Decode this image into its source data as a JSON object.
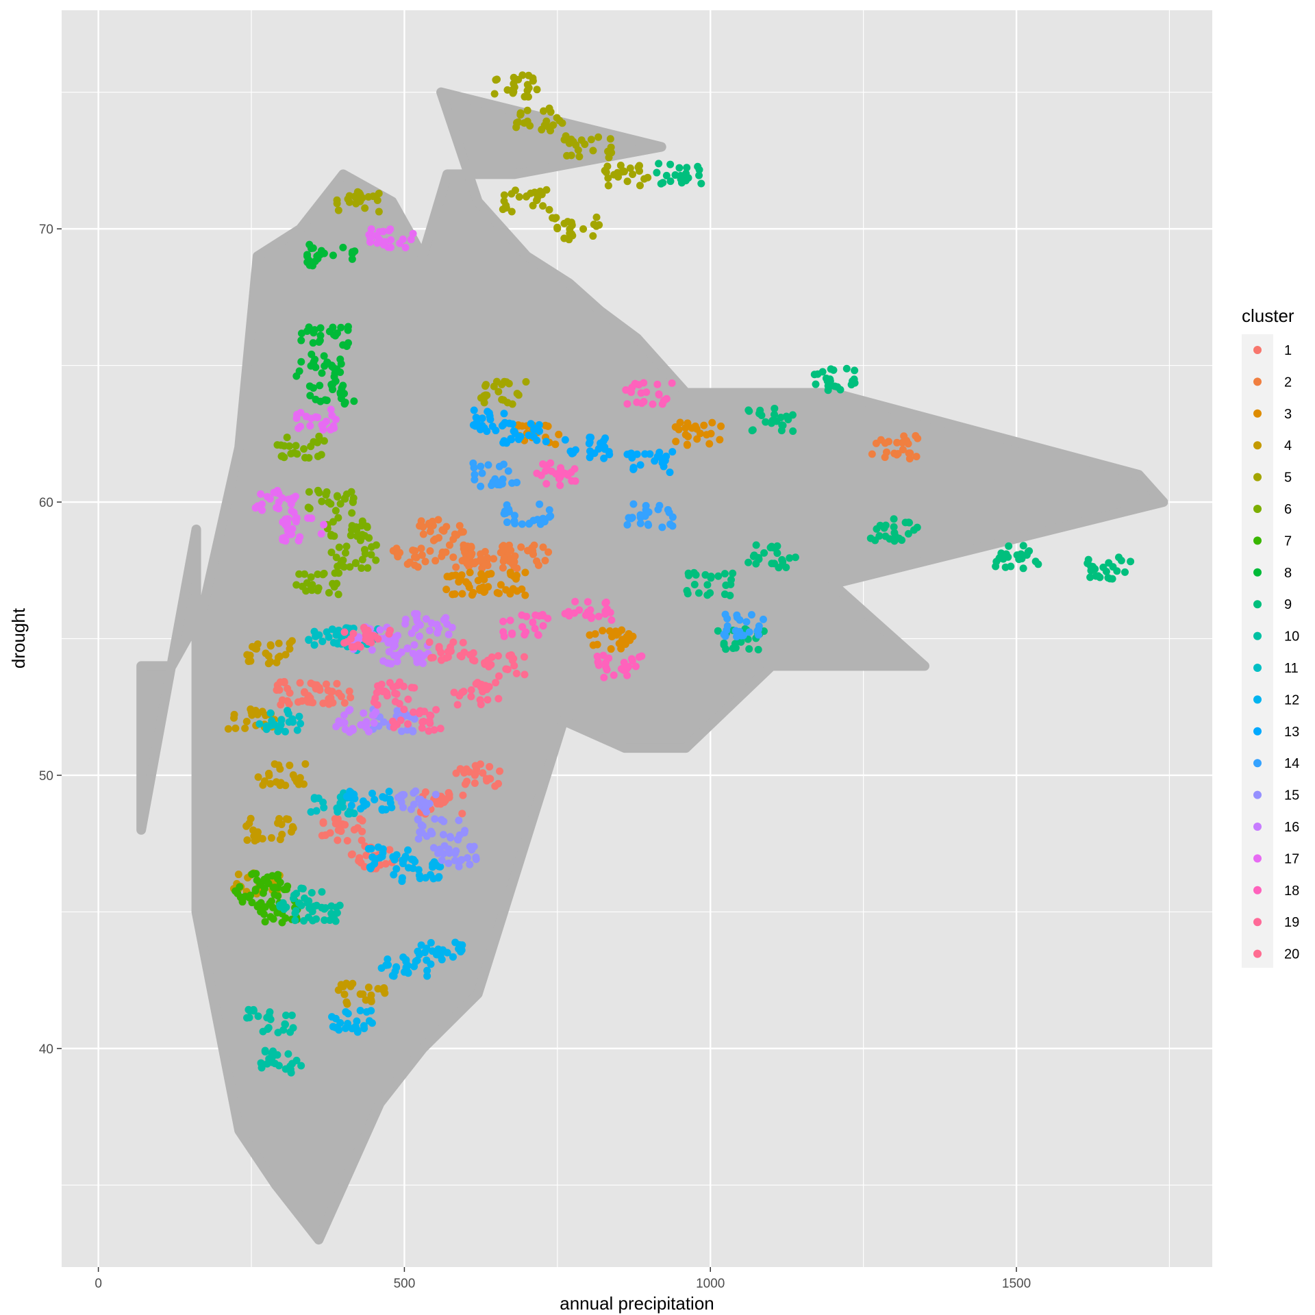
{
  "chart_data": {
    "type": "scatter",
    "title": "",
    "xlabel": "annual precipitation",
    "ylabel": "drought",
    "xlim": [
      -60,
      1820
    ],
    "ylim": [
      32,
      78
    ],
    "x_ticks": [
      0,
      500,
      1000,
      1500
    ],
    "x_tick_labels": [
      "0",
      "500",
      "1000",
      "1500"
    ],
    "y_ticks": [
      40,
      50,
      60,
      70
    ],
    "y_tick_labels": [
      "40",
      "50",
      "60",
      "70"
    ],
    "grid": true,
    "background_color": "#e5e5e5",
    "grid_color": "#ffffff",
    "unclustered_color": "#b3b3b3",
    "legend": {
      "title": "cluster",
      "position": "right",
      "entries": [
        {
          "label": "1",
          "color": "#F8766D"
        },
        {
          "label": "2",
          "color": "#F07F40"
        },
        {
          "label": "3",
          "color": "#DE8C00"
        },
        {
          "label": "4",
          "color": "#C49A00"
        },
        {
          "label": "5",
          "color": "#A3A500"
        },
        {
          "label": "6",
          "color": "#7CAE00"
        },
        {
          "label": "7",
          "color": "#39B600"
        },
        {
          "label": "8",
          "color": "#00BA38"
        },
        {
          "label": "9",
          "color": "#00BF7D"
        },
        {
          "label": "10",
          "color": "#00C1A3"
        },
        {
          "label": "11",
          "color": "#00BFC4"
        },
        {
          "label": "12",
          "color": "#00B4F0"
        },
        {
          "label": "13",
          "color": "#00A9FF"
        },
        {
          "label": "14",
          "color": "#35A2FF"
        },
        {
          "label": "15",
          "color": "#9590FF"
        },
        {
          "label": "16",
          "color": "#C77CFF"
        },
        {
          "label": "17",
          "color": "#E76BF3"
        },
        {
          "label": "18",
          "color": "#FF62BC"
        },
        {
          "label": "19",
          "color": "#FF6A98"
        },
        {
          "label": "20",
          "color": "#FF6C91"
        }
      ]
    },
    "background_region": [
      [
        70,
        54
      ],
      [
        70,
        48
      ],
      [
        160,
        59
      ],
      [
        160,
        45
      ],
      [
        230,
        37
      ],
      [
        290,
        35
      ],
      [
        360,
        33
      ],
      [
        460,
        38
      ],
      [
        530,
        40
      ],
      [
        620,
        42
      ],
      [
        690,
        47
      ],
      [
        760,
        52
      ],
      [
        860,
        51
      ],
      [
        960,
        51
      ],
      [
        1100,
        54
      ],
      [
        1350,
        54
      ],
      [
        1200,
        57
      ],
      [
        1740,
        60
      ],
      [
        1700,
        61
      ],
      [
        1200,
        64
      ],
      [
        960,
        64
      ],
      [
        880,
        66
      ],
      [
        820,
        67
      ],
      [
        770,
        68
      ],
      [
        700,
        69
      ],
      [
        620,
        71
      ],
      [
        560,
        75
      ],
      [
        920,
        73
      ],
      [
        680,
        72
      ],
      [
        570,
        72
      ],
      [
        530,
        69
      ],
      [
        480,
        71
      ],
      [
        400,
        72
      ],
      [
        330,
        70
      ],
      [
        260,
        69
      ],
      [
        230,
        62
      ],
      [
        170,
        56
      ],
      [
        120,
        54
      ]
    ],
    "clusters": [
      {
        "label": "1",
        "points": [
          [
            560,
            49
          ],
          [
            620,
            50
          ],
          [
            330,
            53
          ],
          [
            380,
            53
          ],
          [
            450,
            47
          ],
          [
            400,
            48
          ]
        ]
      },
      {
        "label": "2",
        "points": [
          [
            560,
            59
          ],
          [
            600,
            58
          ],
          [
            520,
            58
          ],
          [
            640,
            58
          ],
          [
            700,
            58
          ],
          [
            1300,
            62
          ]
        ]
      },
      {
        "label": "3",
        "points": [
          [
            720,
            62.5
          ],
          [
            660,
            57
          ],
          [
            600,
            57
          ],
          [
            840,
            55
          ],
          [
            980,
            62.5
          ]
        ]
      },
      {
        "label": "4",
        "points": [
          [
            280,
            54.5
          ],
          [
            300,
            50
          ],
          [
            280,
            48
          ],
          [
            260,
            46
          ],
          [
            250,
            52
          ],
          [
            430,
            42
          ]
        ]
      },
      {
        "label": "5",
        "points": [
          [
            680,
            75.2
          ],
          [
            720,
            74
          ],
          [
            800,
            73
          ],
          [
            700,
            71
          ],
          [
            780,
            70
          ],
          [
            860,
            72
          ],
          [
            420,
            71
          ],
          [
            660,
            64
          ]
        ]
      },
      {
        "label": "6",
        "points": [
          [
            380,
            60
          ],
          [
            410,
            59
          ],
          [
            360,
            57
          ],
          [
            330,
            62
          ],
          [
            420,
            58
          ]
        ]
      },
      {
        "label": "7",
        "points": [
          [
            260,
            45.5
          ],
          [
            280,
            46
          ],
          [
            300,
            45
          ]
        ]
      },
      {
        "label": "8",
        "points": [
          [
            380,
            69
          ],
          [
            370,
            66
          ],
          [
            380,
            64
          ],
          [
            360,
            65
          ]
        ]
      },
      {
        "label": "9",
        "points": [
          [
            1000,
            57
          ],
          [
            1100,
            58
          ],
          [
            1300,
            59
          ],
          [
            1500,
            58
          ],
          [
            1650,
            57.6
          ],
          [
            1100,
            63
          ],
          [
            1200,
            64.5
          ],
          [
            1050,
            55
          ],
          [
            950,
            72
          ]
        ]
      },
      {
        "label": "10",
        "points": [
          [
            330,
            45.5
          ],
          [
            280,
            41
          ],
          [
            300,
            39.5
          ],
          [
            360,
            45
          ]
        ]
      },
      {
        "label": "11",
        "points": [
          [
            420,
            55
          ],
          [
            380,
            55
          ],
          [
            300,
            52
          ],
          [
            380,
            49
          ]
        ]
      },
      {
        "label": "12",
        "points": [
          [
            420,
            41
          ],
          [
            500,
            43
          ],
          [
            560,
            43.5
          ],
          [
            480,
            47
          ],
          [
            440,
            49
          ],
          [
            520,
            46.5
          ]
        ]
      },
      {
        "label": "13",
        "points": [
          [
            700,
            62.5
          ],
          [
            800,
            62
          ],
          [
            900,
            61.5
          ],
          [
            650,
            63
          ]
        ]
      },
      {
        "label": "14",
        "points": [
          [
            700,
            59.5
          ],
          [
            900,
            59.5
          ],
          [
            1050,
            55.5
          ],
          [
            650,
            61
          ]
        ]
      },
      {
        "label": "15",
        "points": [
          [
            520,
            49
          ],
          [
            560,
            48
          ],
          [
            480,
            52
          ],
          [
            580,
            47
          ]
        ]
      },
      {
        "label": "16",
        "points": [
          [
            450,
            55
          ],
          [
            500,
            54.5
          ],
          [
            540,
            55.5
          ],
          [
            420,
            52
          ]
        ]
      },
      {
        "label": "17",
        "points": [
          [
            290,
            60
          ],
          [
            340,
            59
          ],
          [
            480,
            69.7
          ],
          [
            360,
            63
          ]
        ]
      },
      {
        "label": "18",
        "points": [
          [
            700,
            55.5
          ],
          [
            800,
            56
          ],
          [
            850,
            54
          ],
          [
            750,
            61
          ],
          [
            900,
            64
          ]
        ]
      },
      {
        "label": "19",
        "points": [
          [
            480,
            53
          ],
          [
            520,
            52
          ],
          [
            440,
            55
          ]
        ]
      },
      {
        "label": "20",
        "points": [
          [
            580,
            54.5
          ],
          [
            620,
            53
          ],
          [
            660,
            54
          ]
        ]
      }
    ]
  }
}
